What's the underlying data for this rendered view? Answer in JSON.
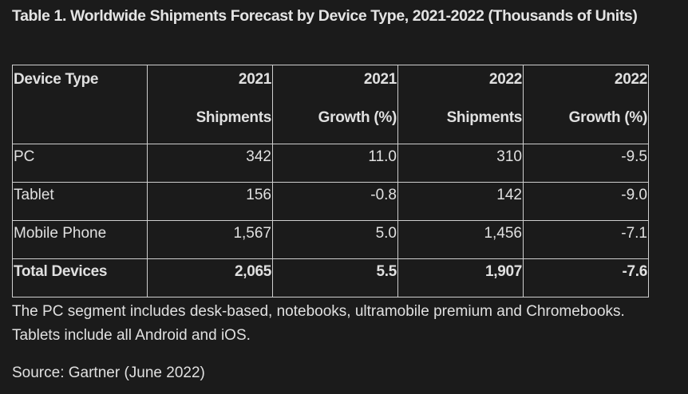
{
  "title": "Table 1. Worldwide Shipments Forecast by Device Type, 2021-2022 (Thousands of Units)",
  "table": {
    "headers": [
      {
        "line1": "Device Type",
        "line2": ""
      },
      {
        "line1": "2021",
        "line2": "Shipments"
      },
      {
        "line1": "2021",
        "line2": "Growth (%)"
      },
      {
        "line1": "2022",
        "line2": "Shipments"
      },
      {
        "line1": "2022",
        "line2": "Growth (%)"
      }
    ],
    "rows": [
      {
        "device": "PC",
        "ship_2021": "342",
        "growth_2021": "11.0",
        "ship_2022": "310",
        "growth_2022": "-9.5"
      },
      {
        "device": "Tablet",
        "ship_2021": "156",
        "growth_2021": "-0.8",
        "ship_2022": "142",
        "growth_2022": "-9.0"
      },
      {
        "device": "Mobile Phone",
        "ship_2021": "1,567",
        "growth_2021": "5.0",
        "ship_2022": "1,456",
        "growth_2022": "-7.1"
      }
    ],
    "total": {
      "device": "Total Devices",
      "ship_2021": "2,065",
      "growth_2021": "5.5",
      "ship_2022": "1,907",
      "growth_2022": "-7.6"
    }
  },
  "note": "The PC segment includes desk-based, notebooks, ultramobile premium and Chromebooks. Tablets include all Android and iOS.",
  "source": "Source: Gartner (June 2022)",
  "colors": {
    "background": "#1b1b1b",
    "text": "#e0e0e0",
    "border": "#cfcfcf"
  }
}
